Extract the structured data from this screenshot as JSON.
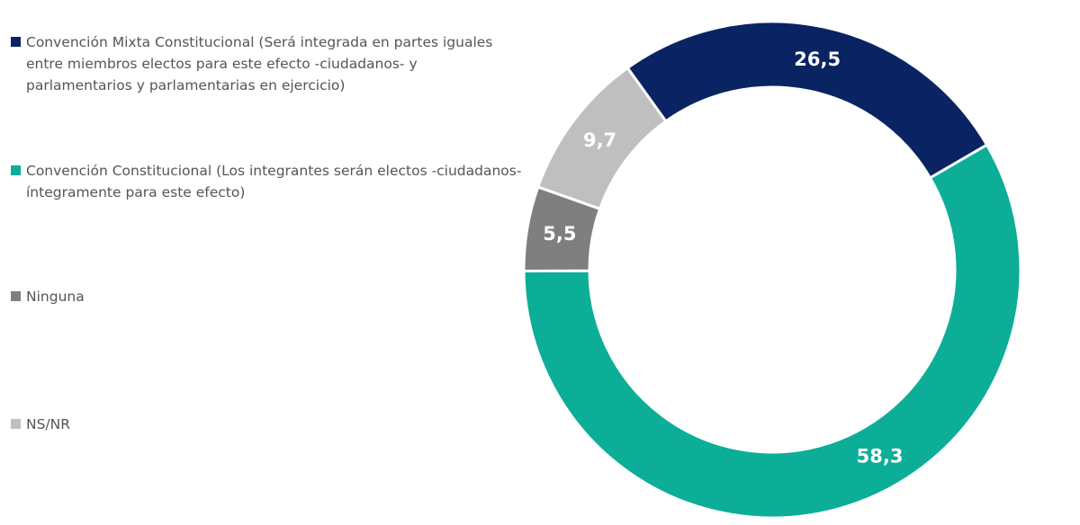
{
  "chart_data": {
    "type": "pie",
    "variant": "donut",
    "title": "",
    "legend_position": "left",
    "slices": [
      {
        "label": "Convención Mixta Constitucional (Será integrada en partes iguales\nentre miembros electos para este efecto -ciudadanos- y\nparlamentarios y parlamentarias en ejercicio)",
        "value": 26.5,
        "value_label": "26,5",
        "color": "#0a2463"
      },
      {
        "label": "Convención Constitucional (Los integrantes serán electos -ciudadanos-\níntegramente para este efecto)",
        "value": 58.3,
        "value_label": "58,3",
        "color": "#0cae98"
      },
      {
        "label": "Ninguna",
        "value": 5.5,
        "value_label": "5,5",
        "color": "#7f7f7f"
      },
      {
        "label": "NS/NR",
        "value": 9.7,
        "value_label": "9,7",
        "color": "#bfbfbf"
      }
    ]
  }
}
